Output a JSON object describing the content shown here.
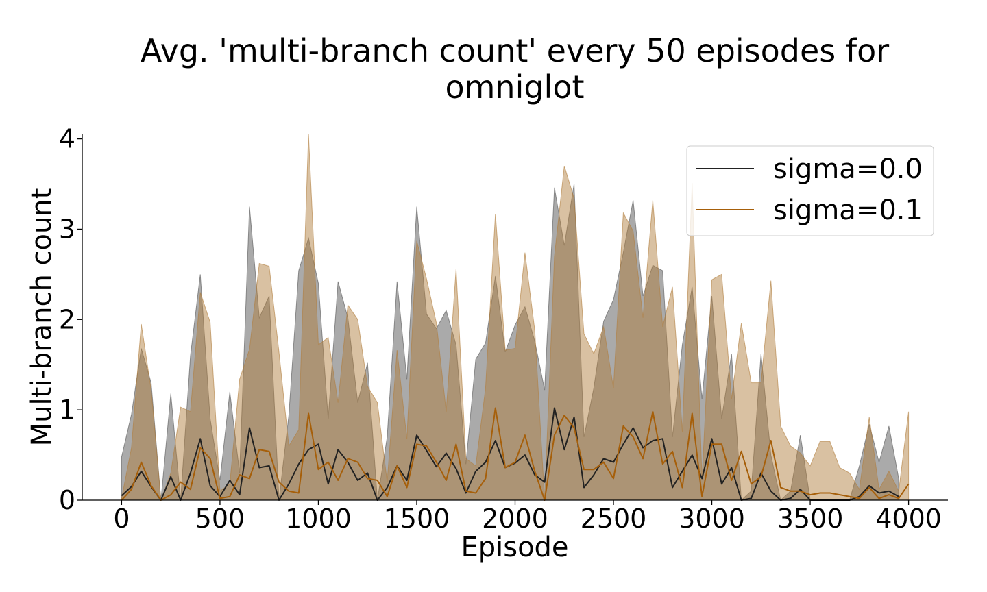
{
  "chart_data": {
    "type": "area",
    "title_lines": [
      "Avg. 'multi-branch count' every 50 episodes for",
      "omniglot"
    ],
    "xlabel": "Episode",
    "ylabel": "Multi-branch count",
    "xlim": [
      -200,
      4200
    ],
    "ylim": [
      0,
      4.05
    ],
    "xticks": [
      0,
      500,
      1000,
      1500,
      2000,
      2500,
      3000,
      3500,
      4000
    ],
    "yticks": [
      0,
      1,
      2,
      3,
      4
    ],
    "xtick_labels": [
      "0",
      "500",
      "1000",
      "1500",
      "2000",
      "2500",
      "3000",
      "3500",
      "4000"
    ],
    "ytick_labels": [
      "0",
      "1",
      "2",
      "3",
      "4"
    ],
    "grid": false,
    "legend_position": "top-right",
    "x": [
      0,
      50,
      100,
      150,
      200,
      250,
      300,
      350,
      400,
      450,
      500,
      550,
      600,
      650,
      700,
      750,
      800,
      850,
      900,
      950,
      1000,
      1050,
      1100,
      1150,
      1200,
      1250,
      1300,
      1350,
      1400,
      1450,
      1500,
      1550,
      1600,
      1650,
      1700,
      1750,
      1800,
      1850,
      1900,
      1950,
      2000,
      2050,
      2100,
      2150,
      2200,
      2250,
      2300,
      2350,
      2400,
      2450,
      2500,
      2550,
      2600,
      2650,
      2700,
      2750,
      2800,
      2850,
      2900,
      2950,
      3000,
      3050,
      3100,
      3150,
      3200,
      3250,
      3300,
      3350,
      3400,
      3450,
      3500,
      3550,
      3600,
      3650,
      3700,
      3750,
      3800,
      3850,
      3900,
      3950,
      4000
    ],
    "series": [
      {
        "name": "sigma=0.0",
        "color": "#222222",
        "fill": "#555555",
        "fill_opacity": 0.5,
        "mean": [
          0.05,
          0.15,
          0.32,
          0.15,
          0.0,
          0.26,
          0.0,
          0.3,
          0.68,
          0.16,
          0.04,
          0.22,
          0.06,
          0.8,
          0.36,
          0.38,
          0.0,
          0.18,
          0.4,
          0.56,
          0.62,
          0.18,
          0.56,
          0.42,
          0.22,
          0.3,
          0.0,
          0.14,
          0.38,
          0.22,
          0.72,
          0.55,
          0.37,
          0.52,
          0.35,
          0.08,
          0.32,
          0.42,
          0.66,
          0.36,
          0.41,
          0.5,
          0.28,
          0.2,
          1.02,
          0.56,
          0.92,
          0.14,
          0.28,
          0.46,
          0.42,
          0.62,
          0.8,
          0.58,
          0.66,
          0.68,
          0.14,
          0.32,
          0.5,
          0.24,
          0.68,
          0.18,
          0.36,
          0.0,
          0.02,
          0.3,
          0.1,
          0.0,
          0.02,
          0.12,
          0.0,
          0.0,
          0.0,
          0.0,
          0.0,
          0.04,
          0.16,
          0.08,
          0.1,
          0.04,
          null
        ],
        "upper": [
          0.48,
          0.95,
          1.68,
          1.3,
          0.0,
          1.18,
          0.0,
          1.6,
          2.5,
          0.9,
          0.22,
          1.2,
          0.3,
          3.25,
          2.02,
          2.26,
          0.0,
          0.94,
          2.54,
          2.9,
          2.4,
          0.9,
          2.42,
          2.02,
          1.08,
          1.52,
          0.0,
          0.7,
          2.42,
          1.34,
          3.25,
          2.06,
          1.9,
          2.1,
          1.72,
          0.4,
          1.56,
          1.74,
          2.48,
          1.64,
          1.94,
          2.14,
          1.76,
          1.22,
          3.46,
          2.82,
          3.5,
          0.7,
          1.24,
          1.98,
          2.22,
          2.74,
          3.32,
          2.26,
          2.6,
          2.54,
          0.7,
          1.72,
          2.36,
          1.12,
          2.26,
          0.9,
          1.62,
          0.0,
          0.1,
          1.62,
          0.5,
          0.0,
          0.1,
          0.72,
          0.0,
          0.0,
          0.0,
          0.0,
          0.0,
          0.38,
          0.84,
          0.42,
          0.82,
          0.24,
          null
        ],
        "lower": [
          0,
          0,
          0,
          0,
          0,
          0,
          0,
          0,
          0,
          0,
          0,
          0,
          0,
          0,
          0,
          0,
          0,
          0,
          0,
          0,
          0,
          0,
          0,
          0,
          0,
          0,
          0,
          0,
          0,
          0,
          0,
          0,
          0,
          0,
          0,
          0,
          0,
          0,
          0,
          0,
          0,
          0,
          0,
          0,
          0,
          0,
          0,
          0,
          0,
          0,
          0,
          0,
          0,
          0,
          0,
          0,
          0,
          0,
          0,
          0,
          0,
          0,
          0,
          0,
          0,
          0,
          0,
          0,
          0,
          0,
          0,
          0,
          0,
          0,
          0,
          0,
          0,
          0,
          0,
          0,
          null
        ]
      },
      {
        "name": "sigma=0.1",
        "color": "#a65f0a",
        "fill": "#b07d3c",
        "fill_opacity": 0.48,
        "mean": [
          0.0,
          0.12,
          0.42,
          0.16,
          0.0,
          0.06,
          0.2,
          0.12,
          0.58,
          0.46,
          0.02,
          0.04,
          0.28,
          0.24,
          0.56,
          0.54,
          0.2,
          0.1,
          0.08,
          0.96,
          0.34,
          0.42,
          0.22,
          0.46,
          0.42,
          0.24,
          0.22,
          0.04,
          0.38,
          0.14,
          0.62,
          0.6,
          0.42,
          0.22,
          0.62,
          0.1,
          0.08,
          0.24,
          1.02,
          0.36,
          0.42,
          0.72,
          0.32,
          0.0,
          0.72,
          0.94,
          0.8,
          0.34,
          0.34,
          0.42,
          0.24,
          0.82,
          0.7,
          0.46,
          0.98,
          0.4,
          0.54,
          0.14,
          0.96,
          0.04,
          0.62,
          0.62,
          0.22,
          0.54,
          0.18,
          0.26,
          0.66,
          0.14,
          0.1,
          0.1,
          0.06,
          0.08,
          0.08,
          0.06,
          0.04,
          0.02,
          0.14,
          0.02,
          0.06,
          0.02,
          0.18
        ],
        "upper": [
          0.02,
          0.58,
          1.95,
          1.22,
          0.0,
          0.3,
          1.03,
          0.98,
          2.3,
          1.97,
          0.1,
          0.18,
          1.34,
          1.67,
          2.62,
          2.59,
          1.64,
          0.6,
          0.78,
          4.05,
          1.72,
          1.8,
          1.08,
          2.16,
          2.0,
          1.26,
          1.08,
          0.2,
          1.66,
          0.68,
          2.87,
          2.45,
          1.96,
          0.98,
          2.56,
          0.46,
          0.38,
          1.24,
          3.17,
          1.66,
          1.68,
          2.74,
          1.88,
          0.0,
          2.7,
          3.7,
          3.34,
          1.84,
          1.62,
          1.92,
          1.24,
          3.18,
          2.98,
          2.02,
          3.32,
          1.92,
          2.36,
          0.76,
          3.51,
          0.22,
          2.44,
          2.5,
          1.12,
          1.96,
          1.3,
          1.3,
          2.43,
          0.82,
          0.6,
          0.52,
          0.38,
          0.65,
          0.65,
          0.36,
          0.3,
          0.12,
          0.92,
          0.12,
          0.32,
          0.1,
          0.98
        ],
        "lower": [
          0,
          0,
          0,
          0,
          0,
          0,
          0,
          0,
          0,
          0,
          0,
          0,
          0,
          0,
          0,
          0,
          0,
          0,
          0,
          0,
          0,
          0,
          0,
          0,
          0,
          0,
          0,
          0,
          0,
          0,
          0,
          0,
          0,
          0,
          0,
          0,
          0,
          0,
          0,
          0,
          0,
          0,
          0,
          0,
          0,
          0,
          0,
          0,
          0,
          0,
          0,
          0,
          0,
          0,
          0,
          0,
          0,
          0,
          0,
          0,
          0,
          0,
          0,
          0,
          0,
          0,
          0,
          0,
          0,
          0,
          0,
          0,
          0,
          0,
          0,
          0,
          0,
          0,
          0,
          0,
          0
        ]
      }
    ]
  }
}
